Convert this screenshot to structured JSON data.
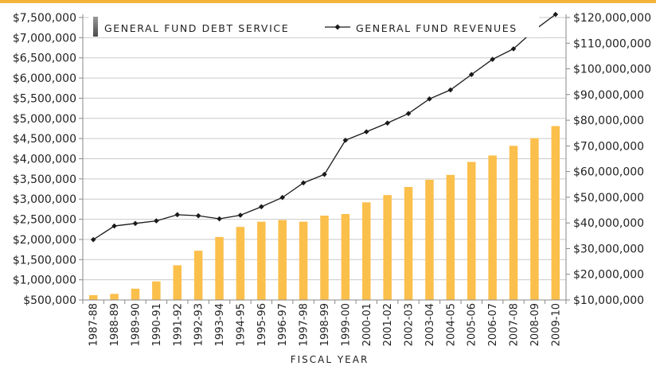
{
  "colors": {
    "top_strip": "#f4b43c",
    "bar": "#fbbf4b",
    "line": "#1a1a1a",
    "grid": "#c9c9c9",
    "axis": "#888888",
    "legend_swatch_top": "#9a9a9a",
    "legend_swatch_bottom": "#4a4a4a"
  },
  "chart_data": {
    "type": "bar",
    "categories": [
      "1987-88",
      "1988-89",
      "1989-90",
      "1990-91",
      "1991-92",
      "1992-93",
      "1993-94",
      "1994-95",
      "1995-96",
      "1996-97",
      "1997-98",
      "1998-99",
      "1999-00",
      "2000-01",
      "2001-02",
      "2002-03",
      "2003-04",
      "2004-05",
      "2005-06",
      "2006-07",
      "2007-08",
      "2008-09",
      "2009-10"
    ],
    "series": [
      {
        "name": "GENERAL FUND DEBT SERVICE",
        "type": "bar",
        "axis": "left",
        "values": [
          620000,
          650000,
          780000,
          960000,
          1360000,
          1720000,
          2060000,
          2310000,
          2440000,
          2480000,
          2440000,
          2590000,
          2630000,
          2920000,
          3100000,
          3300000,
          3480000,
          3600000,
          3920000,
          4080000,
          4320000,
          4510000,
          4810000
        ]
      },
      {
        "name": "GENERAL FUND REVENUES",
        "type": "line",
        "axis": "right",
        "marker": "diamond",
        "values": [
          33500000,
          38800000,
          39800000,
          40800000,
          43200000,
          42800000,
          41600000,
          43000000,
          46300000,
          49900000,
          55600000,
          58900000,
          72200000,
          75500000,
          78900000,
          82600000,
          88300000,
          91800000,
          97800000,
          103700000,
          107800000,
          115100000,
          121200000
        ]
      }
    ],
    "y_left": {
      "min": 500000,
      "max": 7500000,
      "step": 500000,
      "tick_labels": [
        "$500,000",
        "$1,000,000",
        "$1,500,000",
        "$2,000,000",
        "$2,500,000",
        "$3,000,000",
        "$3,500,000",
        "$4,000,000",
        "$4,500,000",
        "$5,000,000",
        "$5,500,000",
        "$6,000,000",
        "$6,500,000",
        "$7,000,000",
        "$7,500,000"
      ]
    },
    "y_right": {
      "min": 10000000,
      "max": 120000000,
      "step": 10000000,
      "tick_labels": [
        "$10,000,000",
        "$20,000,000",
        "$30,000,000",
        "$40,000,000",
        "$50,000,000",
        "$60,000,000",
        "$70,000,000",
        "$80,000,000",
        "$90,000,000",
        "$100,000,000",
        "$110,000,000",
        "$120,000,000"
      ]
    },
    "xlabel": "FISCAL YEAR",
    "ylabel": "",
    "grid": true,
    "legend_placement": "top"
  }
}
